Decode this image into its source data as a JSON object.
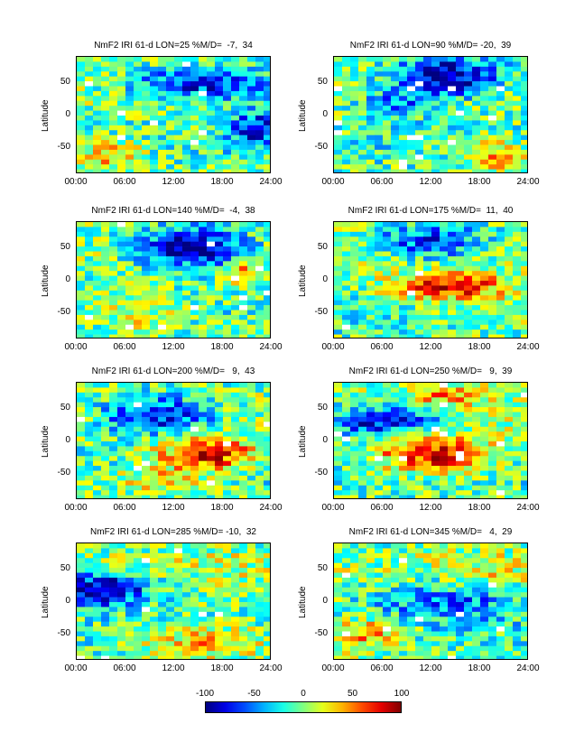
{
  "chart_data": {
    "type": "heatmap",
    "panels": [
      {
        "title": "NmF2 IRI 61-d LON=25 %M/D=  -7,  34",
        "ylabel": "Latitude",
        "xticks": [
          "00:00",
          "06:00",
          "12:00",
          "18:00",
          "24:00"
        ],
        "yticks": [
          "50",
          "0",
          "-50"
        ],
        "ylim": [
          -90,
          90
        ],
        "xlim": [
          0,
          24
        ],
        "features": [
          {
            "lat": 50,
            "hour": 16,
            "v": -80,
            "rl": 25,
            "rh": 9
          },
          {
            "lat": -20,
            "hour": 22,
            "v": -70,
            "rl": 30,
            "rh": 3
          },
          {
            "lat": -60,
            "hour": 4,
            "v": 50,
            "rl": 25,
            "rh": 4
          }
        ]
      },
      {
        "title": "NmF2 IRI 61-d LON=90 %M/D= -20,  39",
        "ylabel": "Latitude",
        "xticks": [
          "00:00",
          "06:00",
          "12:00",
          "18:00",
          "24:00"
        ],
        "yticks": [
          "50",
          "0",
          "-50"
        ],
        "ylim": [
          -90,
          90
        ],
        "xlim": [
          0,
          24
        ],
        "features": [
          {
            "lat": 60,
            "hour": 14,
            "v": -95,
            "rl": 30,
            "rh": 7
          },
          {
            "lat": 20,
            "hour": 8,
            "v": -40,
            "rl": 25,
            "rh": 5
          },
          {
            "lat": -60,
            "hour": 20,
            "v": 50,
            "rl": 25,
            "rh": 4
          }
        ]
      },
      {
        "title": "NmF2 IRI 61-d LON=140 %M/D=  -4,  38",
        "ylabel": "Latitude",
        "xticks": [
          "00:00",
          "06:00",
          "12:00",
          "18:00",
          "24:00"
        ],
        "yticks": [
          "50",
          "0",
          "-50"
        ],
        "ylim": [
          -90,
          90
        ],
        "xlim": [
          0,
          24
        ],
        "features": [
          {
            "lat": 50,
            "hour": 14,
            "v": -100,
            "rl": 30,
            "rh": 7
          },
          {
            "lat": 10,
            "hour": 21,
            "v": 70,
            "rl": 15,
            "rh": 2
          },
          {
            "lat": -50,
            "hour": 8,
            "v": 30,
            "rl": 30,
            "rh": 6
          }
        ]
      },
      {
        "title": "NmF2 IRI 61-d LON=175 %M/D=  11,  40",
        "ylabel": "Latitude",
        "xticks": [
          "00:00",
          "06:00",
          "12:00",
          "18:00",
          "24:00"
        ],
        "yticks": [
          "50",
          "0",
          "-50"
        ],
        "ylim": [
          -90,
          90
        ],
        "xlim": [
          0,
          24
        ],
        "features": [
          {
            "lat": -10,
            "hour": 14,
            "v": 90,
            "rl": 20,
            "rh": 7
          },
          {
            "lat": 60,
            "hour": 12,
            "v": -70,
            "rl": 25,
            "rh": 7
          },
          {
            "lat": -50,
            "hour": 20,
            "v": 20,
            "rl": 30,
            "rh": 6
          }
        ]
      },
      {
        "title": "NmF2 IRI 61-d LON=200 %M/D=   9,  43",
        "ylabel": "Latitude",
        "xticks": [
          "00:00",
          "06:00",
          "12:00",
          "18:00",
          "24:00"
        ],
        "yticks": [
          "50",
          "0",
          "-50"
        ],
        "ylim": [
          -90,
          90
        ],
        "xlim": [
          0,
          24
        ],
        "features": [
          {
            "lat": 40,
            "hour": 10,
            "v": -80,
            "rl": 30,
            "rh": 7
          },
          {
            "lat": -20,
            "hour": 16,
            "v": 95,
            "rl": 25,
            "rh": 6
          },
          {
            "lat": -60,
            "hour": 10,
            "v": 40,
            "rl": 20,
            "rh": 6
          }
        ]
      },
      {
        "title": "NmF2 IRI 61-d LON=250 %M/D=   9,  39",
        "ylabel": "Latitude",
        "xticks": [
          "00:00",
          "06:00",
          "12:00",
          "18:00",
          "24:00"
        ],
        "yticks": [
          "50",
          "0",
          "-50"
        ],
        "ylim": [
          -90,
          90
        ],
        "xlim": [
          0,
          24
        ],
        "features": [
          {
            "lat": 30,
            "hour": 6,
            "v": -80,
            "rl": 25,
            "rh": 7
          },
          {
            "lat": -20,
            "hour": 12,
            "v": 90,
            "rl": 30,
            "rh": 7
          },
          {
            "lat": 70,
            "hour": 14,
            "v": 50,
            "rl": 15,
            "rh": 5
          }
        ]
      },
      {
        "title": "NmF2 IRI 61-d LON=285 %M/D= -10,  32",
        "ylabel": "Latitude",
        "xticks": [
          "00:00",
          "06:00",
          "12:00",
          "18:00",
          "24:00"
        ],
        "yticks": [
          "50",
          "0",
          "-50"
        ],
        "ylim": [
          -90,
          90
        ],
        "xlim": [
          0,
          24
        ],
        "features": [
          {
            "lat": 20,
            "hour": 3,
            "v": -100,
            "rl": 25,
            "rh": 6
          },
          {
            "lat": -60,
            "hour": 16,
            "v": 50,
            "rl": 25,
            "rh": 8
          },
          {
            "lat": 60,
            "hour": 18,
            "v": 10,
            "rl": 20,
            "rh": 6
          }
        ]
      },
      {
        "title": "NmF2 IRI 61-d LON=345 %M/D=   4,  29",
        "ylabel": "Latitude",
        "xticks": [
          "00:00",
          "06:00",
          "12:00",
          "18:00",
          "24:00"
        ],
        "yticks": [
          "50",
          "0",
          "-50"
        ],
        "ylim": [
          -90,
          90
        ],
        "xlim": [
          0,
          24
        ],
        "features": [
          {
            "lat": 0,
            "hour": 14,
            "v": -50,
            "rl": 30,
            "rh": 9
          },
          {
            "lat": -50,
            "hour": 4,
            "v": 60,
            "rl": 25,
            "rh": 5
          },
          {
            "lat": 50,
            "hour": 20,
            "v": 20,
            "rl": 25,
            "rh": 6
          }
        ]
      }
    ],
    "colorbar": {
      "min": -100,
      "max": 100,
      "ticks": [
        "-100",
        "-50",
        "0",
        "50",
        "100"
      ],
      "colormap": "jet"
    },
    "grid": {
      "hours_per_cell": 1,
      "lat_step_deg": 7.5
    }
  }
}
